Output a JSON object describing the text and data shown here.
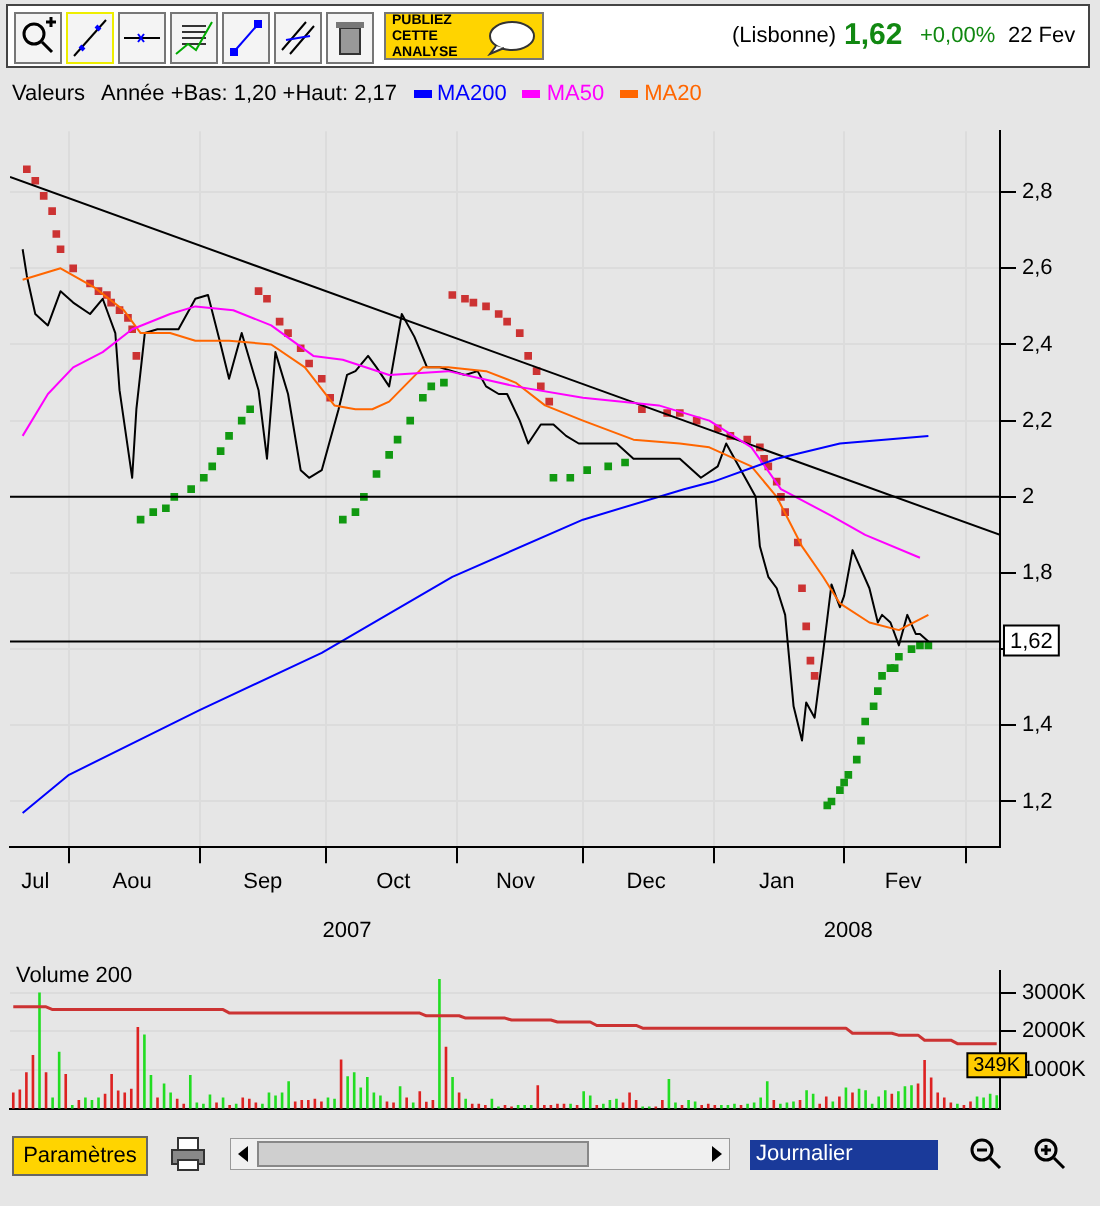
{
  "chart_data": [
    {
      "type": "line",
      "legend_title": "Valeurs",
      "legend": "top",
      "grid": true,
      "marker": "none",
      "annotations": [
        "Année +Bas: 1,20 +Haut: 2,17",
        "PUBLIEZ CETTE ANALYSE",
        "(Lisbonne)",
        "1,62",
        "+0,00%",
        "22 Fev",
        "Paramètres",
        "Journalier"
      ],
      "xlim": [
        "2007-07-18",
        "2008-03-09"
      ],
      "xticks": [
        {
          "value": "2007-08-01",
          "label": null
        },
        {
          "value": "2007-09-01",
          "label": null
        },
        {
          "value": "2007-10-01",
          "label": null
        },
        {
          "value": "2007-11-01",
          "label": null
        },
        {
          "value": "2007-12-01",
          "label": null
        },
        {
          "value": "2008-01-01",
          "label": null
        },
        {
          "value": "2008-02-01",
          "label": null
        },
        {
          "value": "2008-03-01",
          "label": null
        },
        {
          "value": "2007-07-24",
          "label": "Jul"
        },
        {
          "value": "2007-08-16",
          "label": "Aou"
        },
        {
          "value": "2007-09-16",
          "label": "Sep"
        },
        {
          "value": "2007-10-17",
          "label": "Oct"
        },
        {
          "value": "2007-11-15",
          "label": "Nov"
        },
        {
          "value": "2007-12-16",
          "label": "Dec"
        },
        {
          "value": "2008-01-16",
          "label": "Jan"
        },
        {
          "value": "2008-02-15",
          "label": "Fev"
        }
      ],
      "x2lim": [
        "2007-07-18",
        "2008-03-09"
      ],
      "x2ticks": [
        {
          "value": "2007-10-06",
          "label": "2007"
        },
        {
          "value": "2008-02-02",
          "label": "2008"
        }
      ],
      "ylim": [
        1.08,
        2.96
      ],
      "yticks": [
        {
          "value": 1.2,
          "label": "1,2"
        },
        {
          "value": 1.4,
          "label": "1,4"
        },
        {
          "value": 1.6,
          "label": null
        },
        {
          "value": 1.8,
          "label": "1,8"
        },
        {
          "value": 2,
          "label": "2"
        },
        {
          "value": 2.2,
          "label": "2,2"
        },
        {
          "value": 2.4,
          "label": "2,4"
        },
        {
          "value": 2.6,
          "label": "2,6"
        },
        {
          "value": 2.8,
          "label": "2,8"
        }
      ],
      "ref_lines": [
        {
          "axis": "y",
          "value": 2,
          "color": "#000000"
        },
        {
          "axis": "y",
          "value": 1.62,
          "label": "1,62",
          "color": "#000000"
        }
      ],
      "series": [
        {
          "type": "line",
          "color": "#0000ff",
          "name": "MA200",
          "x": [
            "2007-07-21",
            "2007-08-01",
            "2007-09-01",
            "2007-09-30",
            "2007-10-31",
            "2007-12-01",
            "2007-12-25",
            "2008-01-01",
            "2008-01-16",
            "2008-01-31",
            "2008-02-21"
          ],
          "values": [
            1.17,
            1.27,
            1.44,
            1.59,
            1.79,
            1.94,
            2.02,
            2.04,
            2.1,
            2.14,
            2.16
          ]
        },
        {
          "type": "line",
          "color": "#ff00ff",
          "name": "MA50",
          "x": [
            "2007-07-21",
            "2007-07-27",
            "2007-08-02",
            "2007-08-09",
            "2007-08-16",
            "2007-08-25",
            "2007-08-31",
            "2007-09-09",
            "2007-09-18",
            "2007-09-28",
            "2007-10-05",
            "2007-10-16",
            "2007-10-30",
            "2007-11-15",
            "2007-12-01",
            "2007-12-19",
            "2007-12-31",
            "2008-01-10",
            "2008-01-17",
            "2008-01-29",
            "2008-02-06",
            "2008-02-19"
          ],
          "values": [
            2.16,
            2.27,
            2.34,
            2.38,
            2.44,
            2.48,
            2.5,
            2.49,
            2.45,
            2.37,
            2.36,
            2.32,
            2.33,
            2.29,
            2.26,
            2.24,
            2.2,
            2.13,
            2.02,
            1.95,
            1.9,
            1.84
          ]
        },
        {
          "type": "line",
          "color": "#ff6600",
          "name": "MA20",
          "x": [
            "2007-07-21",
            "2007-07-30",
            "2007-08-07",
            "2007-08-14",
            "2007-08-18",
            "2007-08-25",
            "2007-08-31",
            "2007-09-08",
            "2007-09-18",
            "2007-09-26",
            "2007-10-03",
            "2007-10-08",
            "2007-10-12",
            "2007-10-16",
            "2007-10-24",
            "2007-10-30",
            "2007-11-08",
            "2007-11-15",
            "2007-11-22",
            "2007-12-01",
            "2007-12-13",
            "2007-12-24",
            "2007-12-31",
            "2008-01-10",
            "2008-01-16",
            "2008-01-22",
            "2008-01-27",
            "2008-01-31",
            "2008-02-07",
            "2008-02-14",
            "2008-02-21"
          ],
          "values": [
            2.57,
            2.6,
            2.55,
            2.49,
            2.43,
            2.43,
            2.41,
            2.41,
            2.4,
            2.34,
            2.24,
            2.23,
            2.23,
            2.25,
            2.34,
            2.34,
            2.33,
            2.3,
            2.24,
            2.2,
            2.15,
            2.14,
            2.13,
            2.08,
            2.0,
            1.87,
            1.79,
            1.72,
            1.67,
            1.65,
            1.69
          ]
        },
        {
          "type": "line",
          "color": "#000000",
          "x": [
            "2007-07-18",
            "2008-03-09"
          ],
          "values": [
            2.84,
            1.9
          ]
        },
        {
          "type": "scatter",
          "color": "#cc3333",
          "marker": "square",
          "x": [
            "2007-07-22",
            "2007-07-24",
            "2007-07-26",
            "2007-07-28",
            "2007-07-29",
            "2007-07-30",
            "2007-08-02",
            "2007-08-06",
            "2007-08-08",
            "2007-08-10",
            "2007-08-11",
            "2007-08-13",
            "2007-08-15",
            "2007-08-16",
            "2007-08-17",
            "2007-09-15",
            "2007-09-17",
            "2007-09-20",
            "2007-09-22",
            "2007-09-25",
            "2007-09-27",
            "2007-09-30",
            "2007-10-02",
            "2007-10-31",
            "2007-11-03",
            "2007-11-05",
            "2007-11-08",
            "2007-11-11",
            "2007-11-13",
            "2007-11-16",
            "2007-11-18",
            "2007-11-20",
            "2007-11-21",
            "2007-11-23",
            "2007-12-15",
            "2007-12-21",
            "2007-12-24",
            "2007-12-28",
            "2008-01-02",
            "2008-01-05",
            "2008-01-09",
            "2008-01-12",
            "2008-01-13",
            "2008-01-14",
            "2008-01-16",
            "2008-01-17",
            "2008-01-18",
            "2008-01-21",
            "2008-01-22",
            "2008-01-23",
            "2008-01-24",
            "2008-01-25"
          ],
          "values": [
            2.86,
            2.83,
            2.79,
            2.75,
            2.69,
            2.65,
            2.6,
            2.56,
            2.54,
            2.53,
            2.51,
            2.49,
            2.47,
            2.44,
            2.37,
            2.54,
            2.52,
            2.46,
            2.43,
            2.39,
            2.35,
            2.31,
            2.26,
            2.53,
            2.52,
            2.51,
            2.5,
            2.48,
            2.46,
            2.43,
            2.37,
            2.33,
            2.29,
            2.25,
            2.23,
            2.22,
            2.22,
            2.2,
            2.18,
            2.16,
            2.15,
            2.13,
            2.1,
            2.08,
            2.04,
            2.0,
            1.96,
            1.88,
            1.76,
            1.66,
            1.57,
            1.53
          ]
        },
        {
          "type": "scatter",
          "color": "#119911",
          "marker": "square",
          "x": [
            "2007-08-18",
            "2007-08-21",
            "2007-08-24",
            "2007-08-26",
            "2007-08-30",
            "2007-09-02",
            "2007-09-04",
            "2007-09-06",
            "2007-09-08",
            "2007-09-11",
            "2007-09-13",
            "2007-10-05",
            "2007-10-08",
            "2007-10-10",
            "2007-10-13",
            "2007-10-16",
            "2007-10-18",
            "2007-10-21",
            "2007-10-24",
            "2007-10-26",
            "2007-10-29",
            "2007-11-24",
            "2007-11-28",
            "2007-12-02",
            "2007-12-07",
            "2007-12-11",
            "2008-01-28",
            "2008-01-29",
            "2008-01-31",
            "2008-02-01",
            "2008-02-02",
            "2008-02-04",
            "2008-02-05",
            "2008-02-06",
            "2008-02-08",
            "2008-02-09",
            "2008-02-10",
            "2008-02-12",
            "2008-02-13",
            "2008-02-14",
            "2008-02-17",
            "2008-02-19",
            "2008-02-21"
          ],
          "values": [
            1.94,
            1.96,
            1.97,
            2.0,
            2.02,
            2.05,
            2.08,
            2.12,
            2.16,
            2.2,
            2.23,
            1.94,
            1.96,
            2.0,
            2.06,
            2.11,
            2.15,
            2.2,
            2.26,
            2.29,
            2.3,
            2.05,
            2.05,
            2.07,
            2.08,
            2.09,
            1.19,
            1.2,
            1.23,
            1.25,
            1.27,
            1.31,
            1.36,
            1.41,
            1.45,
            1.49,
            1.53,
            1.55,
            1.55,
            1.58,
            1.6,
            1.61,
            1.61
          ]
        },
        {
          "type": "line",
          "color": "#000000",
          "x": [
            "2007-07-21",
            "2007-07-22",
            "2007-07-24",
            "2007-07-27",
            "2007-07-30",
            "2007-08-02",
            "2007-08-06",
            "2007-08-09",
            "2007-08-12",
            "2007-08-13",
            "2007-08-16",
            "2007-08-17",
            "2007-08-19",
            "2007-08-22",
            "2007-08-27",
            "2007-08-31",
            "2007-09-03",
            "2007-09-06",
            "2007-09-08",
            "2007-09-11",
            "2007-09-15",
            "2007-09-17",
            "2007-09-19",
            "2007-09-22",
            "2007-09-25",
            "2007-09-27",
            "2007-09-30",
            "2007-10-04",
            "2007-10-06",
            "2007-10-08",
            "2007-10-11",
            "2007-10-13",
            "2007-10-16",
            "2007-10-19",
            "2007-10-22",
            "2007-10-25",
            "2007-10-28",
            "2007-10-31",
            "2007-11-03",
            "2007-11-06",
            "2007-11-08",
            "2007-11-11",
            "2007-11-13",
            "2007-11-16",
            "2007-11-18",
            "2007-11-21",
            "2007-11-24",
            "2007-11-27",
            "2007-11-30",
            "2007-12-04",
            "2007-12-09",
            "2007-12-13",
            "2007-12-16",
            "2007-12-21",
            "2007-12-24",
            "2007-12-29",
            "2008-01-02",
            "2008-01-04",
            "2008-01-06",
            "2008-01-09",
            "2008-01-11",
            "2008-01-12",
            "2008-01-14",
            "2008-01-16",
            "2008-01-18",
            "2008-01-20",
            "2008-01-22",
            "2008-01-23",
            "2008-01-25",
            "2008-01-27",
            "2008-01-29",
            "2008-01-31",
            "2008-02-01",
            "2008-02-03",
            "2008-02-05",
            "2008-02-07",
            "2008-02-09",
            "2008-02-10",
            "2008-02-12",
            "2008-02-14",
            "2008-02-16",
            "2008-02-18",
            "2008-02-19",
            "2008-02-21"
          ],
          "values": [
            2.65,
            2.58,
            2.48,
            2.45,
            2.54,
            2.51,
            2.48,
            2.52,
            2.43,
            2.28,
            2.05,
            2.23,
            2.43,
            2.44,
            2.44,
            2.52,
            2.53,
            2.4,
            2.31,
            2.43,
            2.28,
            2.1,
            2.38,
            2.27,
            2.07,
            2.05,
            2.07,
            2.23,
            2.32,
            2.33,
            2.37,
            2.34,
            2.29,
            2.48,
            2.42,
            2.34,
            2.34,
            2.33,
            2.32,
            2.33,
            2.29,
            2.27,
            2.27,
            2.2,
            2.14,
            2.19,
            2.19,
            2.16,
            2.14,
            2.14,
            2.14,
            2.1,
            2.1,
            2.1,
            2.1,
            2.05,
            2.08,
            2.14,
            2.1,
            2.04,
            2.0,
            1.87,
            1.79,
            1.76,
            1.69,
            1.45,
            1.36,
            1.46,
            1.42,
            1.59,
            1.77,
            1.71,
            1.74,
            1.86,
            1.81,
            1.76,
            1.67,
            1.69,
            1.67,
            1.61,
            1.69,
            1.64,
            1.64,
            1.62
          ]
        }
      ]
    },
    {
      "type": "bar",
      "title": "Volume 200",
      "grid": "y",
      "tick_labels": "y",
      "ylim": [
        0,
        3550
      ],
      "yticks": [
        {
          "value": 1000,
          "label": "1000K"
        },
        {
          "value": 2000,
          "label": "2000K"
        },
        {
          "value": 3000,
          "label": "3000K"
        }
      ],
      "categories": [
        null,
        null,
        null,
        null,
        null,
        null,
        null,
        null,
        null,
        null,
        null,
        null,
        null,
        null,
        null,
        null,
        null,
        null,
        null,
        null,
        null,
        null,
        null,
        null,
        null,
        null,
        null,
        null,
        null,
        null,
        null,
        null,
        null,
        null,
        null,
        null,
        null,
        null,
        null,
        null,
        null,
        null,
        null,
        null,
        null,
        null,
        null,
        null,
        null,
        null,
        null,
        null,
        null,
        null,
        null,
        null,
        null,
        null,
        null,
        null,
        null,
        null,
        null,
        null,
        null,
        null,
        null,
        null,
        null,
        null,
        null,
        null,
        null,
        null,
        null,
        null,
        null,
        null,
        null,
        null,
        null,
        null,
        null,
        null,
        null,
        null,
        null,
        null,
        null,
        null,
        null,
        null,
        null,
        null,
        null,
        null,
        null,
        null,
        null,
        null,
        null,
        null,
        null,
        null,
        null,
        null,
        null,
        null,
        null,
        null,
        null,
        null,
        null,
        null,
        null,
        null,
        null,
        null,
        null,
        null,
        null,
        null,
        null,
        null,
        null,
        null,
        null,
        null,
        null,
        null,
        null,
        null,
        null,
        null,
        null,
        null,
        null,
        null,
        null,
        null,
        null,
        null,
        null,
        null,
        null,
        null,
        null,
        null,
        null,
        null,
        null
      ],
      "series": [
        {
          "type": "bar",
          "colors": [
            "#dd2222",
            "#dd2222",
            "#dd2222",
            "#dd2222",
            "#22dd22",
            "#dd2222",
            "#22dd22",
            "#22dd22",
            "#dd2222",
            "#22dd22",
            "#dd2222",
            "#22dd22",
            "#22dd22",
            "#22dd22",
            "#dd2222",
            "#dd2222",
            "#dd2222",
            "#dd2222",
            "#dd2222",
            "#dd2222",
            "#22dd22",
            "#22dd22",
            "#dd2222",
            "#22dd22",
            "#22dd22",
            "#dd2222",
            "#dd2222",
            "#22dd22",
            "#22dd22",
            "#22dd22",
            "#22dd22",
            "#dd2222",
            "#22dd22",
            "#dd2222",
            "#22dd22",
            "#dd2222",
            "#dd2222",
            "#dd2222",
            "#22dd22",
            "#22dd22",
            "#22dd22",
            "#22dd22",
            "#22dd22",
            "#dd2222",
            "#dd2222",
            "#dd2222",
            "#dd2222",
            "#dd2222",
            "#22dd22",
            "#22dd22",
            "#dd2222",
            "#22dd22",
            "#22dd22",
            "#22dd22",
            "#22dd22",
            "#22dd22",
            "#22dd22",
            "#dd2222",
            "#dd2222",
            "#22dd22",
            "#dd2222",
            "#22dd22",
            "#dd2222",
            "#dd2222",
            "#dd2222",
            "#22dd22",
            "#dd2222",
            "#22dd22",
            "#dd2222",
            "#22dd22",
            "#dd2222",
            "#dd2222",
            "#dd2222",
            "#22dd22",
            "#22dd22",
            "#dd2222",
            "#dd2222",
            "#22dd22",
            "#22dd22",
            "#22dd22",
            "#dd2222",
            "#dd2222",
            "#dd2222",
            "#dd2222",
            "#dd2222",
            "#22dd22",
            "#dd2222",
            "#22dd22",
            "#22dd22",
            "#dd2222",
            "#22dd22",
            "#22dd22",
            "#22dd22",
            "#dd2222",
            "#dd2222",
            "#dd2222",
            "#22dd22",
            "#22dd22",
            "#dd2222",
            "#dd2222",
            "#22dd22",
            "#22dd22",
            "#dd2222",
            "#22dd22",
            "#22dd22",
            "#dd2222",
            "#dd2222",
            "#dd2222",
            "#22dd22",
            "#22dd22",
            "#22dd22",
            "#dd2222",
            "#22dd22",
            "#22dd22",
            "#22dd22",
            "#22dd22",
            "#dd2222",
            "#22dd22",
            "#22dd22",
            "#22dd22",
            "#dd2222",
            "#22dd22",
            "#22dd22",
            "#dd2222",
            "#dd2222",
            "#22dd22",
            "#dd2222",
            "#22dd22",
            "#dd2222",
            "#22dd22",
            "#22dd22",
            "#22dd22",
            "#22dd22",
            "#22dd22",
            "#dd2222",
            "#22dd22",
            "#22dd22",
            "#22dd22",
            "#dd2222",
            "#dd2222",
            "#dd2222",
            "#dd2222",
            "#dd2222",
            "#dd2222",
            "#22dd22",
            "#dd2222",
            "#dd2222",
            "#22dd22",
            "#22dd22",
            "#22dd22",
            "#22dd22"
          ],
          "values": [
            420,
            500,
            940,
            1390,
            3000,
            940,
            290,
            1470,
            900,
            100,
            230,
            290,
            230,
            290,
            390,
            900,
            470,
            420,
            520,
            2110,
            1920,
            870,
            290,
            650,
            420,
            260,
            130,
            870,
            160,
            130,
            370,
            160,
            290,
            100,
            130,
            290,
            260,
            160,
            130,
            420,
            340,
            420,
            710,
            190,
            230,
            230,
            260,
            190,
            290,
            260,
            1270,
            840,
            940,
            550,
            820,
            420,
            340,
            190,
            160,
            580,
            290,
            160,
            450,
            180,
            230,
            3350,
            1600,
            820,
            420,
            260,
            130,
            130,
            100,
            260,
            60,
            100,
            60,
            100,
            100,
            100,
            610,
            100,
            100,
            130,
            130,
            130,
            100,
            450,
            340,
            100,
            130,
            230,
            260,
            160,
            420,
            230,
            60,
            60,
            60,
            230,
            770,
            160,
            100,
            230,
            190,
            100,
            130,
            100,
            100,
            100,
            130,
            100,
            130,
            160,
            290,
            710,
            230,
            130,
            160,
            190,
            230,
            480,
            390,
            130,
            320,
            190,
            320,
            550,
            420,
            520,
            480,
            130,
            320,
            480,
            390,
            450,
            580,
            610,
            650,
            1260,
            810,
            420,
            290,
            160,
            130,
            100,
            190,
            320,
            290,
            390,
            349
          ],
          "value_labels": [
            null,
            null,
            null,
            null,
            null,
            null,
            null,
            null,
            null,
            null,
            null,
            null,
            null,
            null,
            null,
            null,
            null,
            null,
            null,
            null,
            null,
            null,
            null,
            null,
            null,
            null,
            null,
            null,
            null,
            null,
            null,
            null,
            null,
            null,
            null,
            null,
            null,
            null,
            null,
            null,
            null,
            null,
            null,
            null,
            null,
            null,
            null,
            null,
            null,
            null,
            null,
            null,
            null,
            null,
            null,
            null,
            null,
            null,
            null,
            null,
            null,
            null,
            null,
            null,
            null,
            null,
            null,
            null,
            null,
            null,
            null,
            null,
            null,
            null,
            null,
            null,
            null,
            null,
            null,
            null,
            null,
            null,
            null,
            null,
            null,
            null,
            null,
            null,
            null,
            null,
            null,
            null,
            null,
            null,
            null,
            null,
            null,
            null,
            null,
            null,
            null,
            null,
            null,
            null,
            null,
            null,
            null,
            null,
            null,
            null,
            null,
            null,
            null,
            null,
            null,
            null,
            null,
            null,
            null,
            null,
            null,
            null,
            null,
            null,
            null,
            null,
            null,
            null,
            null,
            null,
            null,
            null,
            null,
            null,
            null,
            null,
            null,
            null,
            null,
            null,
            null,
            null,
            null,
            null,
            null,
            null,
            null,
            null,
            null,
            null,
            "349K"
          ]
        },
        {
          "type": "line",
          "color": "#cc3333",
          "values": [
            2630,
            2630,
            2630,
            2630,
            2630,
            2630,
            2560,
            2560,
            2560,
            2560,
            2560,
            2560,
            2560,
            2560,
            2560,
            2560,
            2560,
            2560,
            2560,
            2560,
            2560,
            2560,
            2560,
            2560,
            2560,
            2560,
            2560,
            2560,
            2560,
            2560,
            2560,
            2560,
            2560,
            2470,
            2470,
            2470,
            2470,
            2470,
            2470,
            2470,
            2470,
            2470,
            2470,
            2470,
            2470,
            2470,
            2470,
            2470,
            2470,
            2470,
            2470,
            2470,
            2470,
            2470,
            2470,
            2470,
            2470,
            2470,
            2470,
            2470,
            2470,
            2470,
            2470,
            2400,
            2400,
            2400,
            2400,
            2400,
            2400,
            2340,
            2340,
            2340,
            2340,
            2340,
            2340,
            2340,
            2290,
            2290,
            2290,
            2290,
            2290,
            2290,
            2290,
            2240,
            2240,
            2240,
            2240,
            2240,
            2240,
            2150,
            2150,
            2150,
            2150,
            2150,
            2150,
            2150,
            2080,
            2080,
            2080,
            2080,
            2080,
            2080,
            2080,
            2080,
            2080,
            2080,
            2080,
            2080,
            2080,
            2080,
            2080,
            2080,
            2080,
            2080,
            2080,
            2080,
            2080,
            2080,
            2080,
            2080,
            2080,
            2080,
            2080,
            2080,
            2080,
            2080,
            2080,
            2080,
            1950,
            1950,
            1950,
            1950,
            1950,
            1950,
            1950,
            1900,
            1900,
            1900,
            1900,
            1770,
            1770,
            1770,
            1770,
            1770,
            1680,
            1680,
            1680,
            1680,
            1680,
            1680,
            1680
          ]
        }
      ]
    }
  ]
}
